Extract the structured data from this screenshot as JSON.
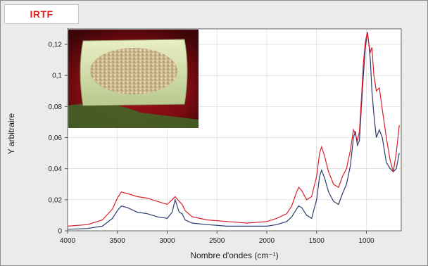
{
  "header": {
    "tag": "IRTF"
  },
  "chart_data": {
    "type": "line",
    "title": "",
    "xlabel": "Nombre d'ondes (cm⁻¹)",
    "ylabel": "Y arbitraire",
    "xlim": [
      4000,
      650
    ],
    "ylim": [
      0,
      0.13
    ],
    "x_reversed": true,
    "x_ticks": [
      4000,
      3500,
      3000,
      2500,
      2000,
      1500,
      1000
    ],
    "y_ticks": [
      0,
      0.02,
      0.04,
      0.06,
      0.08,
      0.1,
      0.12
    ],
    "y_tick_labels": [
      "0",
      "0,02",
      "0,04",
      "0,06",
      "0,08",
      "0,1",
      "0,12"
    ],
    "grid": true,
    "inset": {
      "icon": "photo-of-granular-sample-in-dish"
    },
    "series": [
      {
        "color": "#2c3b6e",
        "x": [
          4000,
          3800,
          3650,
          3550,
          3500,
          3460,
          3400,
          3300,
          3200,
          3100,
          3000,
          2950,
          2920,
          2880,
          2850,
          2820,
          2750,
          2600,
          2400,
          2200,
          2000,
          1900,
          1800,
          1750,
          1700,
          1680,
          1650,
          1600,
          1550,
          1500,
          1470,
          1450,
          1420,
          1380,
          1330,
          1280,
          1240,
          1200,
          1160,
          1130,
          1110,
          1090,
          1070,
          1050,
          1030,
          1010,
          990,
          975,
          960,
          945,
          925,
          900,
          870,
          840,
          800,
          760,
          730,
          700,
          670
        ],
        "y": [
          0.001,
          0.0015,
          0.003,
          0.008,
          0.013,
          0.016,
          0.015,
          0.012,
          0.011,
          0.009,
          0.008,
          0.012,
          0.02,
          0.012,
          0.011,
          0.007,
          0.005,
          0.004,
          0.003,
          0.003,
          0.003,
          0.004,
          0.006,
          0.009,
          0.014,
          0.016,
          0.015,
          0.01,
          0.008,
          0.02,
          0.035,
          0.039,
          0.034,
          0.025,
          0.019,
          0.017,
          0.024,
          0.03,
          0.042,
          0.06,
          0.064,
          0.055,
          0.058,
          0.08,
          0.1,
          0.118,
          0.128,
          0.12,
          0.11,
          0.09,
          0.075,
          0.06,
          0.065,
          0.06,
          0.044,
          0.04,
          0.038,
          0.04,
          0.05
        ]
      },
      {
        "color": "#d81e2c",
        "x": [
          4000,
          3800,
          3650,
          3550,
          3500,
          3460,
          3400,
          3300,
          3200,
          3100,
          3000,
          2950,
          2920,
          2880,
          2850,
          2820,
          2750,
          2600,
          2400,
          2200,
          2000,
          1900,
          1800,
          1750,
          1700,
          1680,
          1650,
          1600,
          1550,
          1500,
          1470,
          1450,
          1420,
          1380,
          1330,
          1280,
          1240,
          1200,
          1160,
          1130,
          1110,
          1090,
          1070,
          1050,
          1030,
          1010,
          990,
          975,
          960,
          945,
          925,
          900,
          870,
          840,
          800,
          760,
          730,
          700,
          670
        ],
        "y": [
          0.003,
          0.004,
          0.007,
          0.014,
          0.021,
          0.025,
          0.024,
          0.022,
          0.021,
          0.019,
          0.017,
          0.02,
          0.022,
          0.019,
          0.017,
          0.013,
          0.009,
          0.007,
          0.006,
          0.005,
          0.006,
          0.008,
          0.011,
          0.016,
          0.025,
          0.028,
          0.026,
          0.02,
          0.022,
          0.035,
          0.05,
          0.054,
          0.048,
          0.038,
          0.03,
          0.028,
          0.035,
          0.04,
          0.052,
          0.065,
          0.062,
          0.058,
          0.064,
          0.085,
          0.108,
          0.122,
          0.128,
          0.12,
          0.115,
          0.118,
          0.1,
          0.09,
          0.092,
          0.078,
          0.06,
          0.045,
          0.038,
          0.05,
          0.068
        ]
      }
    ]
  }
}
